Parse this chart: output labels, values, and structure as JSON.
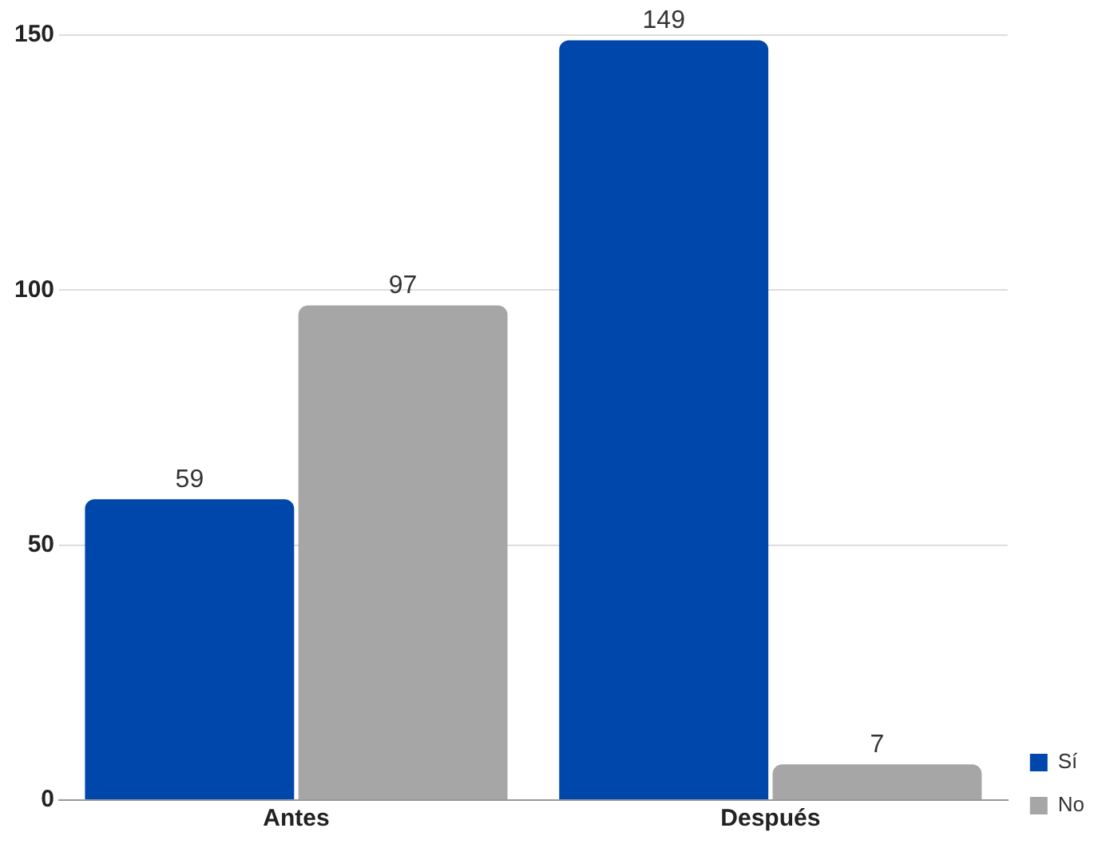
{
  "chart_data": {
    "type": "bar",
    "categories": [
      "Antes",
      "Después"
    ],
    "series": [
      {
        "name": "Sí",
        "color": "#0047ab",
        "values": [
          59,
          149
        ]
      },
      {
        "name": "No",
        "color": "#a6a6a6",
        "values": [
          97,
          7
        ]
      }
    ],
    "ylim": [
      0,
      150
    ],
    "yticks": [
      0,
      50,
      100,
      150
    ],
    "grid": "y",
    "legend": "bottom right",
    "data_labels": true
  }
}
